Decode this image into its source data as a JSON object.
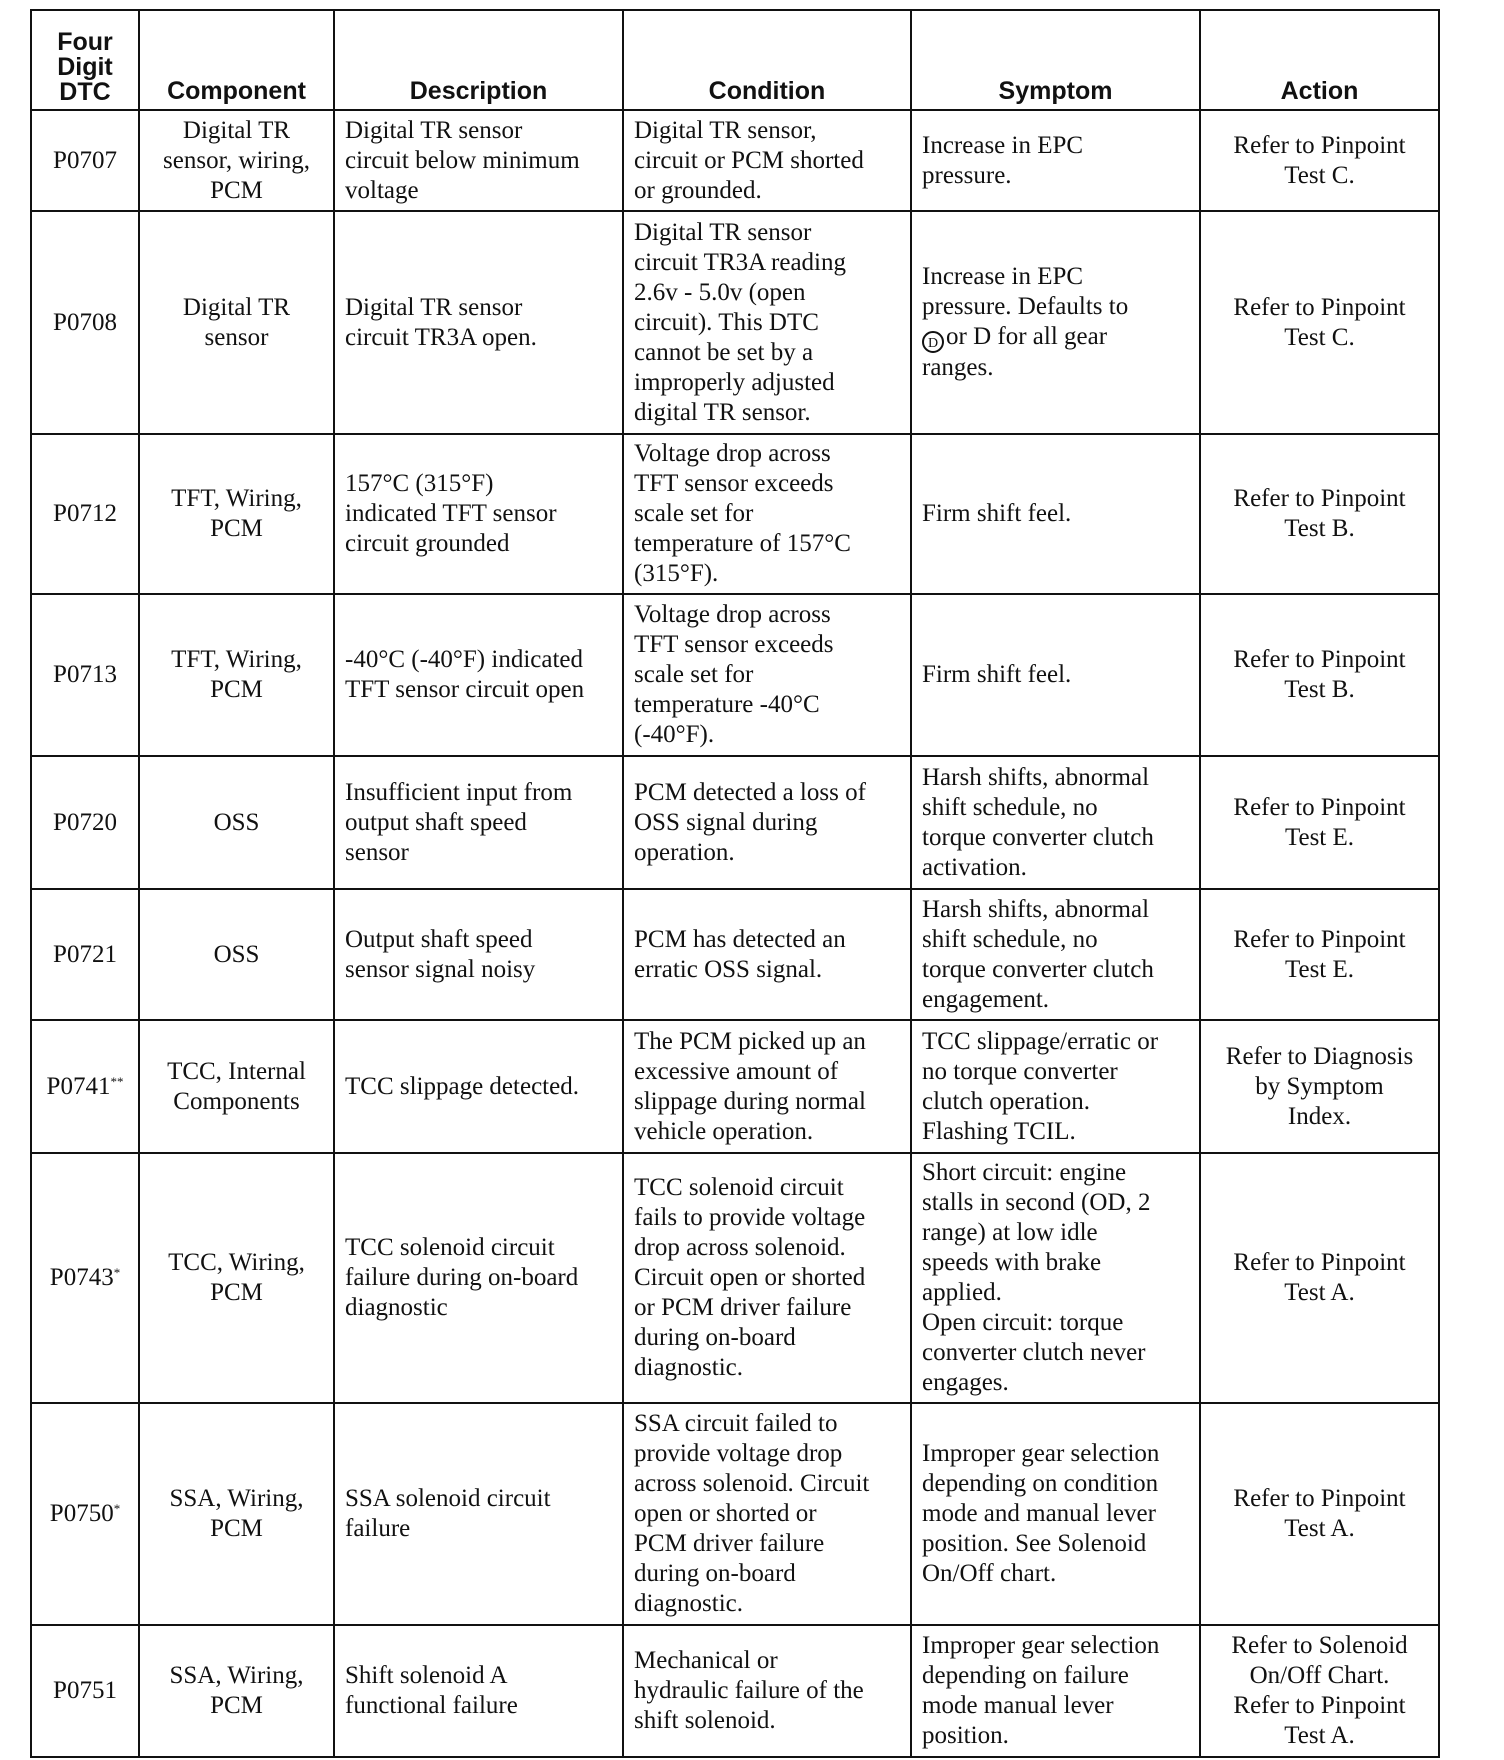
{
  "headers": [
    "Four\nDigit\nDTC",
    "Component",
    "Description",
    "Condition",
    "Symptom",
    "Action"
  ],
  "rows": [
    {
      "dtc": "P0707",
      "mark": "",
      "component": "Digital TR\nsensor, wiring,\nPCM",
      "description": "Digital TR sensor\ncircuit below minimum\nvoltage",
      "condition": "Digital TR sensor,\ncircuit or PCM shorted\nor grounded.",
      "symptom": "Increase in EPC\npressure.",
      "action": "Refer to Pinpoint\nTest C."
    },
    {
      "dtc": "P0708",
      "mark": "",
      "component": "Digital TR\nsensor",
      "description": "Digital TR sensor\ncircuit TR3A open.",
      "condition": "Digital TR sensor\ncircuit TR3A reading\n2.6v - 5.0v (open\ncircuit). This DTC\ncannot be set by a\nimproperly adjusted\ndigital TR sensor.",
      "symptom_pre": "Increase in EPC\npressure. Defaults to\n",
      "symptom_symbol": "D",
      "symptom_post": "or D for all gear\nranges.",
      "action": "Refer to Pinpoint\nTest C."
    },
    {
      "dtc": "P0712",
      "mark": "",
      "component": "TFT, Wiring,\nPCM",
      "description": "157°C (315°F)\nindicated TFT sensor\ncircuit grounded",
      "condition": "Voltage drop across\nTFT sensor exceeds\nscale set for\ntemperature of 157°C\n(315°F).",
      "symptom": "Firm shift feel.",
      "action": "Refer to Pinpoint\nTest B."
    },
    {
      "dtc": "P0713",
      "mark": "",
      "component": "TFT, Wiring,\nPCM",
      "description": "-40°C (-40°F) indicated\nTFT sensor circuit open",
      "condition": "Voltage drop across\nTFT sensor exceeds\nscale set for\ntemperature -40°C\n(-40°F).",
      "symptom": "Firm shift feel.",
      "action": "Refer to Pinpoint\nTest B."
    },
    {
      "dtc": "P0720",
      "mark": "",
      "component": "OSS",
      "description": "Insufficient input from\noutput shaft speed\nsensor",
      "condition": "PCM detected a loss of\nOSS signal during\noperation.",
      "symptom": "Harsh shifts, abnormal\nshift schedule, no\ntorque converter clutch\nactivation.",
      "action": "Refer to Pinpoint\nTest E."
    },
    {
      "dtc": "P0721",
      "mark": "",
      "component": "OSS",
      "description": "Output shaft speed\nsensor signal noisy",
      "condition": "PCM has detected an\nerratic OSS signal.",
      "symptom": "Harsh shifts, abnormal\nshift schedule, no\ntorque converter clutch\nengagement.",
      "action": "Refer to Pinpoint\nTest E."
    },
    {
      "dtc": "P0741",
      "mark": "**",
      "component": "TCC, Internal\nComponents",
      "description": "TCC slippage detected.",
      "condition": "The PCM picked up an\nexcessive amount of\nslippage during normal\nvehicle operation.",
      "symptom": "TCC slippage/erratic or\nno torque converter\nclutch operation.\nFlashing TCIL.",
      "action": "Refer to Diagnosis\nby Symptom\nIndex."
    },
    {
      "dtc": "P0743",
      "mark": "*",
      "component": "TCC, Wiring,\nPCM",
      "description": "TCC solenoid circuit\nfailure during on-board\ndiagnostic",
      "condition": "TCC solenoid circuit\nfails to provide voltage\ndrop across solenoid.\nCircuit open or shorted\nor PCM driver failure\nduring on-board\ndiagnostic.",
      "symptom": "Short circuit: engine\nstalls in second (OD, 2\nrange) at low idle\nspeeds with brake\napplied.\nOpen circuit: torque\nconverter clutch never\nengages.",
      "action": "Refer to Pinpoint\nTest A."
    },
    {
      "dtc": "P0750",
      "mark": "*",
      "component": "SSA, Wiring,\nPCM",
      "description": "SSA solenoid circuit\nfailure",
      "condition": "SSA circuit failed to\nprovide voltage drop\nacross solenoid. Circuit\nopen or shorted or\nPCM driver failure\nduring on-board\ndiagnostic.",
      "symptom": "Improper gear selection\ndepending on condition\nmode and manual lever\nposition. See Solenoid\nOn/Off chart.",
      "action": "Refer to Pinpoint\nTest A."
    },
    {
      "dtc": "P0751",
      "mark": "",
      "component": "SSA, Wiring,\nPCM",
      "description": "Shift solenoid A\nfunctional failure",
      "condition": "Mechanical or\nhydraulic failure of the\nshift solenoid.",
      "symptom": "Improper gear selection\ndepending on failure\nmode manual lever\nposition.",
      "action": "Refer to Solenoid\nOn/Off Chart.\nRefer to Pinpoint\nTest A."
    }
  ]
}
